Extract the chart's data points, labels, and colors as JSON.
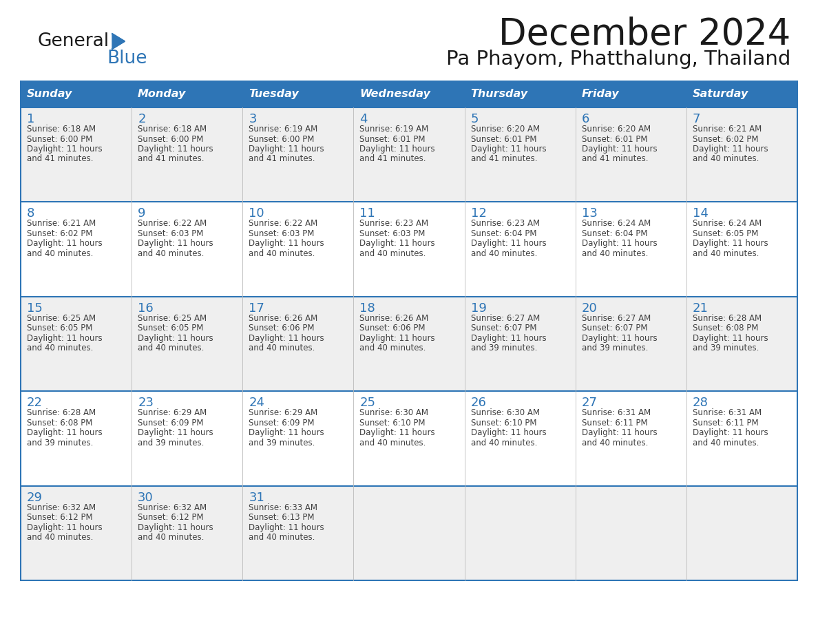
{
  "title": "December 2024",
  "subtitle": "Pa Phayom, Phatthalung, Thailand",
  "header_color": "#2E75B6",
  "header_text_color": "#FFFFFF",
  "day_names": [
    "Sunday",
    "Monday",
    "Tuesday",
    "Wednesday",
    "Thursday",
    "Friday",
    "Saturday"
  ],
  "bg_color": "#FFFFFF",
  "cell_bg_odd": "#EFEFEF",
  "cell_bg_even": "#FFFFFF",
  "grid_line_color": "#2E75B6",
  "day_num_color": "#2E75B6",
  "text_color": "#404040",
  "title_color": "#1a1a1a",
  "logo_general_color": "#1a1a1a",
  "logo_blue_color": "#2E75B6",
  "weeks": [
    {
      "days": [
        {
          "day": 1,
          "sunrise": "6:18 AM",
          "sunset": "6:00 PM",
          "daylight": "11 hours and 41 minutes."
        },
        {
          "day": 2,
          "sunrise": "6:18 AM",
          "sunset": "6:00 PM",
          "daylight": "11 hours and 41 minutes."
        },
        {
          "day": 3,
          "sunrise": "6:19 AM",
          "sunset": "6:00 PM",
          "daylight": "11 hours and 41 minutes."
        },
        {
          "day": 4,
          "sunrise": "6:19 AM",
          "sunset": "6:01 PM",
          "daylight": "11 hours and 41 minutes."
        },
        {
          "day": 5,
          "sunrise": "6:20 AM",
          "sunset": "6:01 PM",
          "daylight": "11 hours and 41 minutes."
        },
        {
          "day": 6,
          "sunrise": "6:20 AM",
          "sunset": "6:01 PM",
          "daylight": "11 hours and 41 minutes."
        },
        {
          "day": 7,
          "sunrise": "6:21 AM",
          "sunset": "6:02 PM",
          "daylight": "11 hours and 40 minutes."
        }
      ]
    },
    {
      "days": [
        {
          "day": 8,
          "sunrise": "6:21 AM",
          "sunset": "6:02 PM",
          "daylight": "11 hours and 40 minutes."
        },
        {
          "day": 9,
          "sunrise": "6:22 AM",
          "sunset": "6:03 PM",
          "daylight": "11 hours and 40 minutes."
        },
        {
          "day": 10,
          "sunrise": "6:22 AM",
          "sunset": "6:03 PM",
          "daylight": "11 hours and 40 minutes."
        },
        {
          "day": 11,
          "sunrise": "6:23 AM",
          "sunset": "6:03 PM",
          "daylight": "11 hours and 40 minutes."
        },
        {
          "day": 12,
          "sunrise": "6:23 AM",
          "sunset": "6:04 PM",
          "daylight": "11 hours and 40 minutes."
        },
        {
          "day": 13,
          "sunrise": "6:24 AM",
          "sunset": "6:04 PM",
          "daylight": "11 hours and 40 minutes."
        },
        {
          "day": 14,
          "sunrise": "6:24 AM",
          "sunset": "6:05 PM",
          "daylight": "11 hours and 40 minutes."
        }
      ]
    },
    {
      "days": [
        {
          "day": 15,
          "sunrise": "6:25 AM",
          "sunset": "6:05 PM",
          "daylight": "11 hours and 40 minutes."
        },
        {
          "day": 16,
          "sunrise": "6:25 AM",
          "sunset": "6:05 PM",
          "daylight": "11 hours and 40 minutes."
        },
        {
          "day": 17,
          "sunrise": "6:26 AM",
          "sunset": "6:06 PM",
          "daylight": "11 hours and 40 minutes."
        },
        {
          "day": 18,
          "sunrise": "6:26 AM",
          "sunset": "6:06 PM",
          "daylight": "11 hours and 40 minutes."
        },
        {
          "day": 19,
          "sunrise": "6:27 AM",
          "sunset": "6:07 PM",
          "daylight": "11 hours and 39 minutes."
        },
        {
          "day": 20,
          "sunrise": "6:27 AM",
          "sunset": "6:07 PM",
          "daylight": "11 hours and 39 minutes."
        },
        {
          "day": 21,
          "sunrise": "6:28 AM",
          "sunset": "6:08 PM",
          "daylight": "11 hours and 39 minutes."
        }
      ]
    },
    {
      "days": [
        {
          "day": 22,
          "sunrise": "6:28 AM",
          "sunset": "6:08 PM",
          "daylight": "11 hours and 39 minutes."
        },
        {
          "day": 23,
          "sunrise": "6:29 AM",
          "sunset": "6:09 PM",
          "daylight": "11 hours and 39 minutes."
        },
        {
          "day": 24,
          "sunrise": "6:29 AM",
          "sunset": "6:09 PM",
          "daylight": "11 hours and 39 minutes."
        },
        {
          "day": 25,
          "sunrise": "6:30 AM",
          "sunset": "6:10 PM",
          "daylight": "11 hours and 40 minutes."
        },
        {
          "day": 26,
          "sunrise": "6:30 AM",
          "sunset": "6:10 PM",
          "daylight": "11 hours and 40 minutes."
        },
        {
          "day": 27,
          "sunrise": "6:31 AM",
          "sunset": "6:11 PM",
          "daylight": "11 hours and 40 minutes."
        },
        {
          "day": 28,
          "sunrise": "6:31 AM",
          "sunset": "6:11 PM",
          "daylight": "11 hours and 40 minutes."
        }
      ]
    },
    {
      "days": [
        {
          "day": 29,
          "sunrise": "6:32 AM",
          "sunset": "6:12 PM",
          "daylight": "11 hours and 40 minutes."
        },
        {
          "day": 30,
          "sunrise": "6:32 AM",
          "sunset": "6:12 PM",
          "daylight": "11 hours and 40 minutes."
        },
        {
          "day": 31,
          "sunrise": "6:33 AM",
          "sunset": "6:13 PM",
          "daylight": "11 hours and 40 minutes."
        },
        {
          "day": null,
          "sunrise": "",
          "sunset": "",
          "daylight": ""
        },
        {
          "day": null,
          "sunrise": "",
          "sunset": "",
          "daylight": ""
        },
        {
          "day": null,
          "sunrise": "",
          "sunset": "",
          "daylight": ""
        },
        {
          "day": null,
          "sunrise": "",
          "sunset": "",
          "daylight": ""
        }
      ]
    }
  ]
}
